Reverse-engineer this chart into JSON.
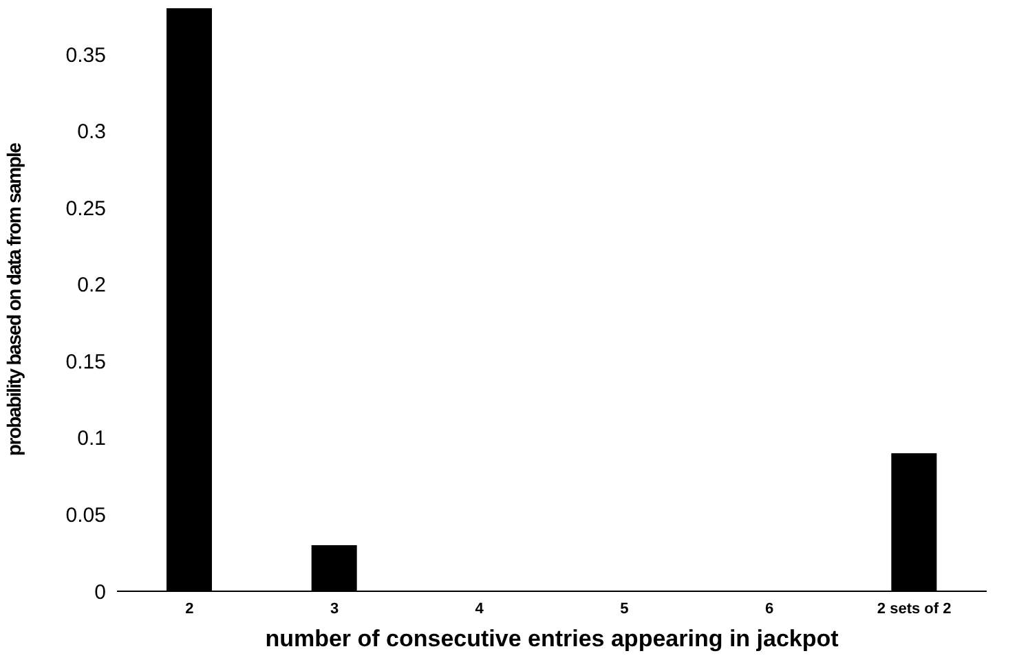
{
  "chart_data": {
    "type": "bar",
    "xlabel": "number of consecutive entries appearing in jackpot",
    "ylabel": "probability based on data from sample",
    "categories": [
      "2",
      "3",
      "4",
      "5",
      "6",
      "2 sets of 2"
    ],
    "values": [
      0.38,
      0.03,
      0,
      0,
      0,
      0.09
    ],
    "color": "#000000",
    "ylim": [
      0,
      0.38
    ],
    "yticks": [
      0,
      0.05,
      0.1,
      0.15,
      0.2,
      0.25,
      0.3,
      0.35
    ],
    "grid": false,
    "legend": false
  }
}
